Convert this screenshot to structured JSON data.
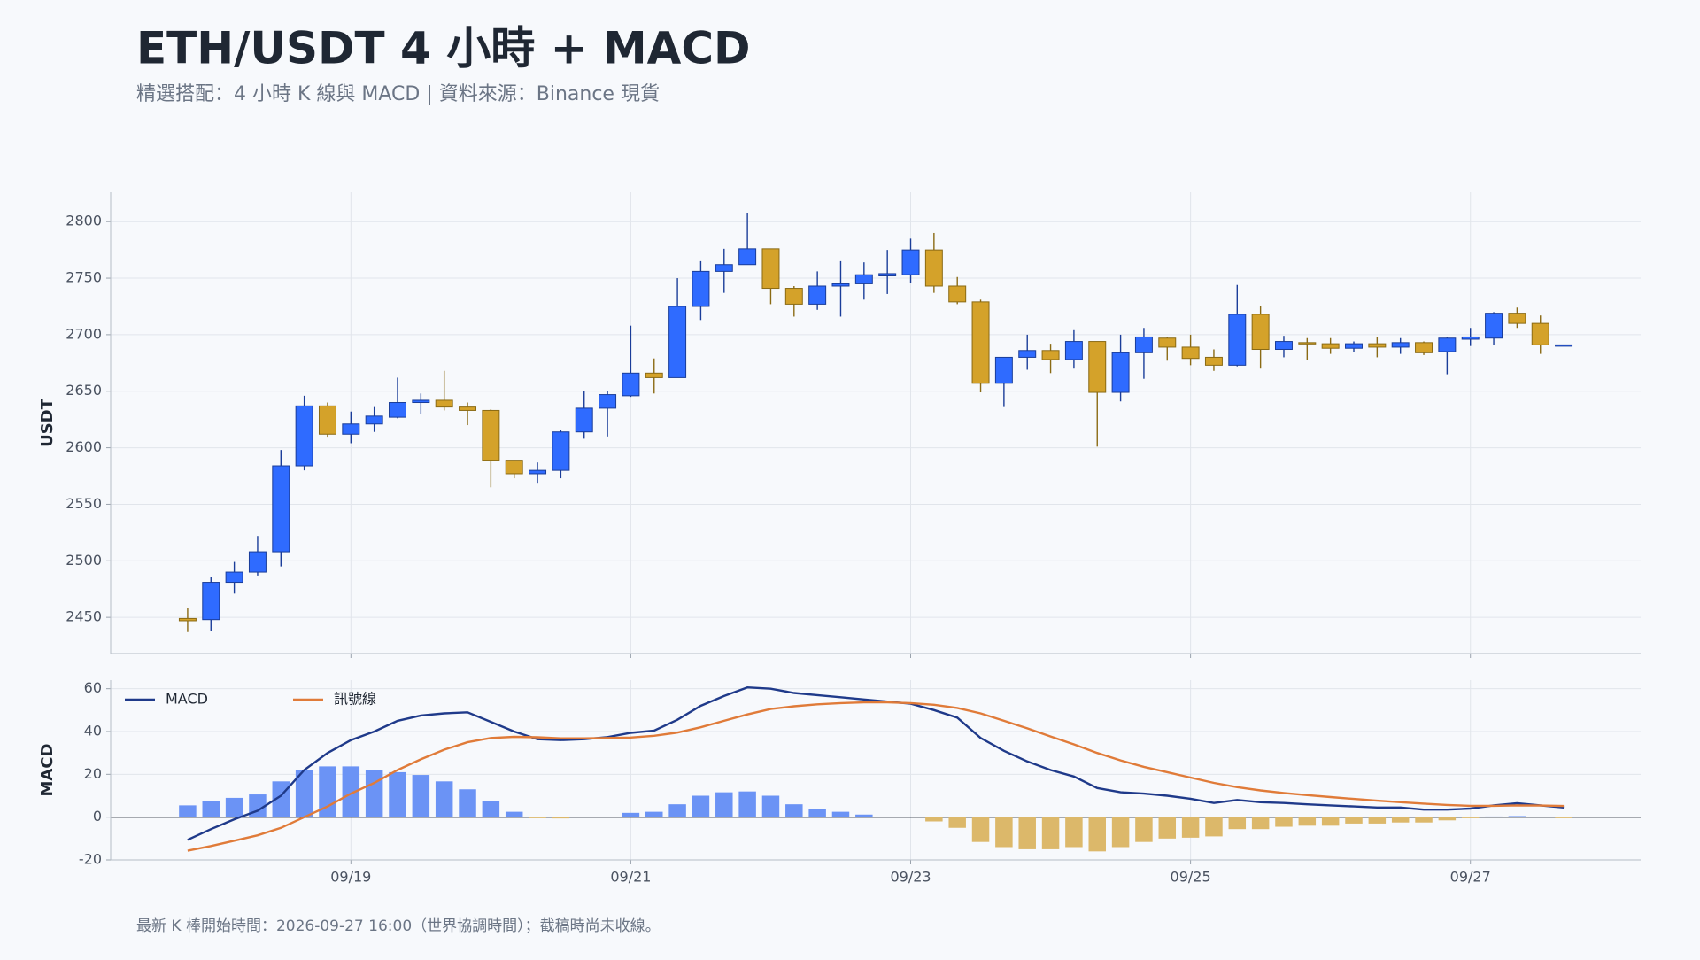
{
  "title": "ETH/USDT 4 小時 + MACD",
  "subtitle": "精選搭配：4 小時 K 線與 MACD | 資料來源：Binance 現貨",
  "footnote": "最新 K 棒開始時間：2026-09-27 16:00（世界協調時間）；截稿時尚未收線。",
  "chart_data": [
    {
      "type": "candlestick",
      "ylabel": "USDT",
      "up_color": "#2f6bff",
      "down_color": "#d4a22a",
      "grid": true,
      "ylim": [
        2418,
        2826
      ],
      "yticks": [
        2450,
        2500,
        2550,
        2600,
        2650,
        2700,
        2750,
        2800
      ],
      "open": [
        2449,
        2448,
        2481,
        2490,
        2508,
        2584,
        2637,
        2612,
        2621,
        2627,
        2640,
        2642,
        2636,
        2633,
        2589,
        2577,
        2580,
        2614,
        2635,
        2646,
        2666,
        2662,
        2725,
        2756,
        2762,
        2776,
        2741,
        2727,
        2743,
        2745,
        2752,
        2753,
        2775,
        2743,
        2729,
        2657,
        2680,
        2686,
        2678,
        2694,
        2649,
        2684,
        2697,
        2689,
        2680,
        2673,
        2718,
        2687,
        2693,
        2692,
        2688,
        2692,
        2689,
        2693,
        2685,
        2696,
        2697,
        2719,
        2710,
        2690
      ],
      "high": [
        2458,
        2486,
        2499,
        2522,
        2598,
        2646,
        2640,
        2632,
        2636,
        2662,
        2648,
        2668,
        2640,
        2634,
        2589,
        2587,
        2616,
        2650,
        2650,
        2708,
        2679,
        2750,
        2765,
        2776,
        2808,
        2776,
        2743,
        2756,
        2765,
        2764,
        2775,
        2785,
        2790,
        2751,
        2731,
        2680,
        2700,
        2692,
        2704,
        2694,
        2700,
        2706,
        2698,
        2700,
        2687,
        2744,
        2725,
        2699,
        2697,
        2697,
        2694,
        2698,
        2697,
        2694,
        2698,
        2706,
        2720,
        2724,
        2717,
        2691
      ],
      "low": [
        2437,
        2438,
        2471,
        2487,
        2495,
        2580,
        2609,
        2604,
        2614,
        2626,
        2630,
        2633,
        2620,
        2565,
        2573,
        2569,
        2573,
        2608,
        2610,
        2645,
        2648,
        2662,
        2713,
        2737,
        2762,
        2727,
        2716,
        2722,
        2716,
        2731,
        2736,
        2746,
        2737,
        2727,
        2649,
        2636,
        2669,
        2666,
        2670,
        2601,
        2641,
        2661,
        2677,
        2673,
        2668,
        2672,
        2670,
        2680,
        2678,
        2683,
        2685,
        2680,
        2683,
        2682,
        2665,
        2690,
        2691,
        2706,
        2683,
        2690
      ],
      "close": [
        2447,
        2481,
        2490,
        2508,
        2584,
        2637,
        2612,
        2621,
        2628,
        2640,
        2642,
        2636,
        2633,
        2589,
        2577,
        2580,
        2614,
        2635,
        2647,
        2666,
        2662,
        2725,
        2756,
        2762,
        2776,
        2741,
        2727,
        2743,
        2745,
        2753,
        2754,
        2775,
        2743,
        2729,
        2657,
        2680,
        2686,
        2678,
        2694,
        2649,
        2684,
        2698,
        2689,
        2679,
        2673,
        2718,
        2687,
        2694,
        2692,
        2688,
        2692,
        2689,
        2693,
        2684,
        2697,
        2698,
        2719,
        2710,
        2691,
        2691
      ]
    },
    {
      "type": "macd",
      "ylabel": "MACD",
      "grid": true,
      "legend": "upper left",
      "ylim": [
        -20,
        64
      ],
      "yticks": [
        -20,
        0,
        20,
        40,
        60
      ],
      "xlim": [
        -3.3,
        62.3
      ],
      "xticks": [
        {
          "value": 7,
          "label": "09/19"
        },
        {
          "value": 19,
          "label": "09/21"
        },
        {
          "value": 31,
          "label": "09/23"
        },
        {
          "value": 43,
          "label": "09/25"
        },
        {
          "value": 55,
          "label": "09/27"
        }
      ],
      "series": [
        {
          "name": "MACD",
          "color": "#1f3a8a",
          "values": [
            -10.6,
            -5.6,
            -1,
            3,
            10,
            22,
            30,
            36,
            40,
            45,
            47.5,
            48.5,
            49,
            44.5,
            40,
            36.4,
            36,
            36.4,
            37.4,
            39.4,
            40.4,
            45.5,
            52,
            56.6,
            60.6,
            60,
            58,
            57,
            56,
            55,
            54,
            53,
            50,
            46.5,
            37,
            31,
            26,
            22,
            19,
            13.6,
            11.6,
            11,
            10,
            8.6,
            6.6,
            8,
            7,
            6.6,
            6,
            5.5,
            5,
            4.5,
            4.5,
            3.5,
            3.5,
            4,
            5.5,
            6.5,
            5.5,
            4.5
          ]
        },
        {
          "name": "訊號線",
          "color": "#e07b39",
          "values": [
            -15.7,
            -13.5,
            -11,
            -8.5,
            -5,
            0,
            5,
            11,
            16,
            22,
            27,
            31.5,
            35,
            37,
            37.5,
            37.3,
            36.8,
            36.8,
            37,
            37.2,
            38,
            39.5,
            42,
            45,
            48,
            50.5,
            51.8,
            52.7,
            53.3,
            53.6,
            53.6,
            53.3,
            52.5,
            51,
            48.5,
            45,
            41.5,
            37.7,
            34,
            30,
            26.5,
            23.5,
            21,
            18.5,
            16,
            14,
            12.5,
            11.3,
            10.3,
            9.4,
            8.5,
            7.7,
            7,
            6.3,
            5.7,
            5.3,
            5.3,
            5.5,
            5.4,
            5.2
          ]
        }
      ],
      "histogram": {
        "up_color": "#6b93f5",
        "down_color": "#dcb86a",
        "values": [
          5.5,
          7.5,
          9,
          10.6,
          16.7,
          22,
          23.7,
          23.7,
          22,
          21,
          19.7,
          16.7,
          13,
          7.5,
          2.5,
          -0.5,
          -0.6,
          0,
          0,
          2,
          2.5,
          6,
          10,
          11.6,
          12,
          10,
          6,
          4,
          2.5,
          1.2,
          0.2,
          0,
          -2,
          -5,
          -11.6,
          -14,
          -15,
          -15,
          -14,
          -16,
          -14,
          -11.6,
          -10,
          -9.6,
          -9,
          -5.6,
          -5.6,
          -4.5,
          -4,
          -4,
          -3,
          -3,
          -2.5,
          -2.5,
          -1.5,
          -0.5,
          0.3,
          0.5,
          0.2,
          -0.5
        ]
      }
    }
  ]
}
